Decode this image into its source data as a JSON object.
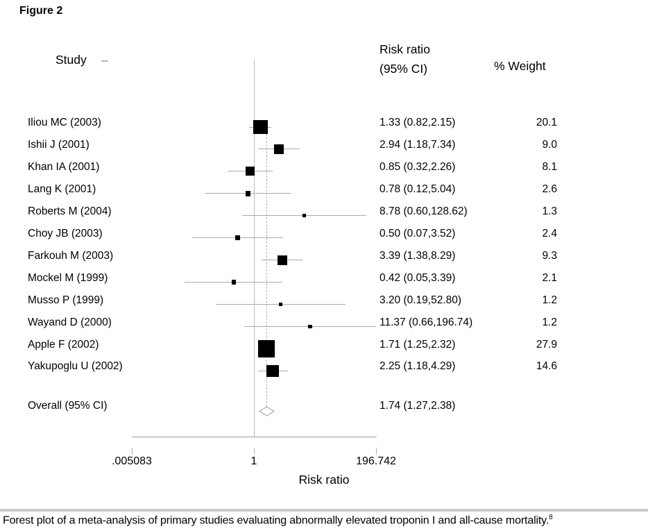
{
  "figure_label": "Figure 2",
  "headers": {
    "study": "Study",
    "risk_ratio_line1": "Risk ratio",
    "risk_ratio_line2": "(95% CI)",
    "weight": "% Weight"
  },
  "chart_data": {
    "type": "forest",
    "x_axis": {
      "label": "Risk ratio",
      "scale": "log",
      "ticks": [
        0.005083,
        1,
        196.742
      ],
      "tick_labels": [
        ".005083",
        "1",
        "196.742"
      ],
      "range": [
        0.005083,
        196.742
      ]
    },
    "reference_line": 1,
    "overall_estimate_line": 1.74,
    "studies": [
      {
        "label": "Iliou MC (2003)",
        "rr": 1.33,
        "ci_low": 0.82,
        "ci_high": 2.15,
        "rr_text": "1.33 (0.82,2.15)",
        "weight": 20.1,
        "weight_text": "20.1"
      },
      {
        "label": "Ishii J (2001)",
        "rr": 2.94,
        "ci_low": 1.18,
        "ci_high": 7.34,
        "rr_text": "2.94 (1.18,7.34)",
        "weight": 9.0,
        "weight_text": "9.0"
      },
      {
        "label": "Khan IA (2001)",
        "rr": 0.85,
        "ci_low": 0.32,
        "ci_high": 2.26,
        "rr_text": "0.85 (0.32,2.26)",
        "weight": 8.1,
        "weight_text": "8.1"
      },
      {
        "label": "Lang K (2001)",
        "rr": 0.78,
        "ci_low": 0.12,
        "ci_high": 5.04,
        "rr_text": "0.78 (0.12,5.04)",
        "weight": 2.6,
        "weight_text": "2.6"
      },
      {
        "label": "Roberts M (2004)",
        "rr": 8.78,
        "ci_low": 0.6,
        "ci_high": 128.62,
        "rr_text": "8.78 (0.60,128.62)",
        "weight": 1.3,
        "weight_text": "1.3"
      },
      {
        "label": "Choy JB (2003)",
        "rr": 0.5,
        "ci_low": 0.07,
        "ci_high": 3.52,
        "rr_text": "0.50 (0.07,3.52)",
        "weight": 2.4,
        "weight_text": "2.4"
      },
      {
        "label": "Farkouh M (2003)",
        "rr": 3.39,
        "ci_low": 1.38,
        "ci_high": 8.29,
        "rr_text": "3.39 (1.38,8.29)",
        "weight": 9.3,
        "weight_text": "9.3"
      },
      {
        "label": "Mockel M (1999)",
        "rr": 0.42,
        "ci_low": 0.05,
        "ci_high": 3.39,
        "rr_text": "0.42 (0.05,3.39)",
        "weight": 2.1,
        "weight_text": "2.1"
      },
      {
        "label": "Musso P (1999)",
        "rr": 3.2,
        "ci_low": 0.19,
        "ci_high": 52.8,
        "rr_text": "3.20 (0.19,52.80)",
        "weight": 1.2,
        "weight_text": "1.2"
      },
      {
        "label": "Wayand D (2000)",
        "rr": 11.37,
        "ci_low": 0.66,
        "ci_high": 196.74,
        "rr_text": "11.37 (0.66,196.74)",
        "weight": 1.2,
        "weight_text": "1.2"
      },
      {
        "label": "Apple F (2002)",
        "rr": 1.71,
        "ci_low": 1.25,
        "ci_high": 2.32,
        "rr_text": "1.71 (1.25,2.32)",
        "weight": 27.9,
        "weight_text": "27.9"
      },
      {
        "label": "Yakupoglu U (2002)",
        "rr": 2.25,
        "ci_low": 1.18,
        "ci_high": 4.29,
        "rr_text": "2.25 (1.18,4.29)",
        "weight": 14.6,
        "weight_text": "14.6"
      }
    ],
    "overall": {
      "label": "Overall (95% CI)",
      "rr": 1.74,
      "ci_low": 1.27,
      "ci_high": 2.38,
      "rr_text": "1.74 (1.27,2.38)"
    }
  },
  "caption": {
    "text": "Forest plot of a meta-analysis of primary studies evaluating abnormally elevated troponin I and all-cause mortality.",
    "reference": "8"
  },
  "colors": {
    "square": "#000000",
    "ci_line": "#a9a9a9",
    "reference_line": "#bdbdbd",
    "overall_dashed_line": "#b0b0b0",
    "axis": "#9a9a9a",
    "diamond_stroke": "#999999",
    "divider": "#c9c9c9",
    "text": "#000000"
  }
}
